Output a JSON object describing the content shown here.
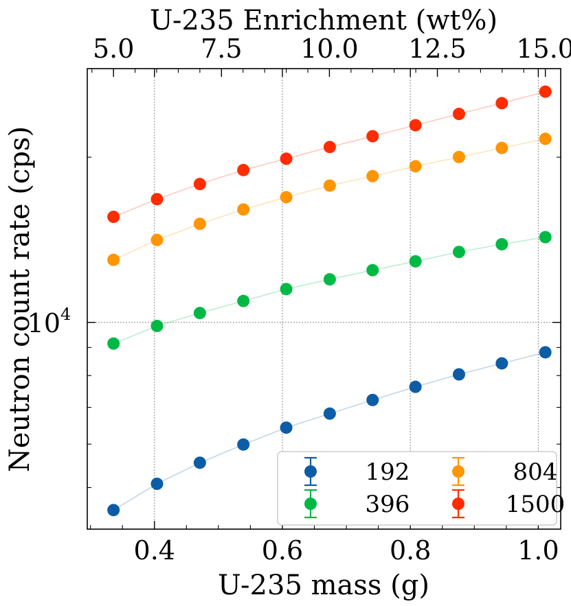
{
  "chart_data": {
    "type": "scatter",
    "title": "",
    "xlabel": "U-235 mass (g)",
    "ylabel": "Neutron count rate (cps)",
    "top_xlabel": "U-235 Enrichment (wt%)",
    "xlim": [
      0.295,
      1.035
    ],
    "ylim": [
      4200,
      29000
    ],
    "yscale": "log",
    "x_ticks": [
      0.4,
      0.6,
      0.8,
      1.0
    ],
    "x_tick_labels": [
      "0.4",
      "0.6",
      "0.8",
      "1.0"
    ],
    "top_ticks": [
      5.0,
      7.5,
      10.0,
      12.5,
      15.0
    ],
    "top_tick_labels": [
      "5.0",
      "7.5",
      "10.0",
      "12.5",
      "15.0"
    ],
    "y_major_tick_label": {
      "base": "10",
      "exponent": "4"
    },
    "grid": true,
    "legend_placement": "lower-right",
    "x": [
      0.336,
      0.404,
      0.471,
      0.539,
      0.606,
      0.674,
      0.741,
      0.808,
      0.876,
      0.943,
      1.011
    ],
    "series": [
      {
        "name": "192",
        "color": "#0C5DA5",
        "values": [
          4550,
          5080,
          5550,
          5990,
          6430,
          6820,
          7220,
          7630,
          8040,
          8420,
          8820
        ]
      },
      {
        "name": "396",
        "color": "#00B945",
        "values": [
          9150,
          9850,
          10400,
          10940,
          11500,
          11980,
          12450,
          12920,
          13440,
          13880,
          14300
        ]
      },
      {
        "name": "804",
        "color": "#FF9500",
        "values": [
          13000,
          14130,
          15120,
          16060,
          16910,
          17750,
          18470,
          19250,
          20010,
          20790,
          21600
        ]
      },
      {
        "name": "1500",
        "color": "#FF2C00",
        "values": [
          15570,
          16770,
          17870,
          18950,
          19870,
          20870,
          21840,
          22870,
          23980,
          25090,
          26330
        ]
      }
    ]
  }
}
